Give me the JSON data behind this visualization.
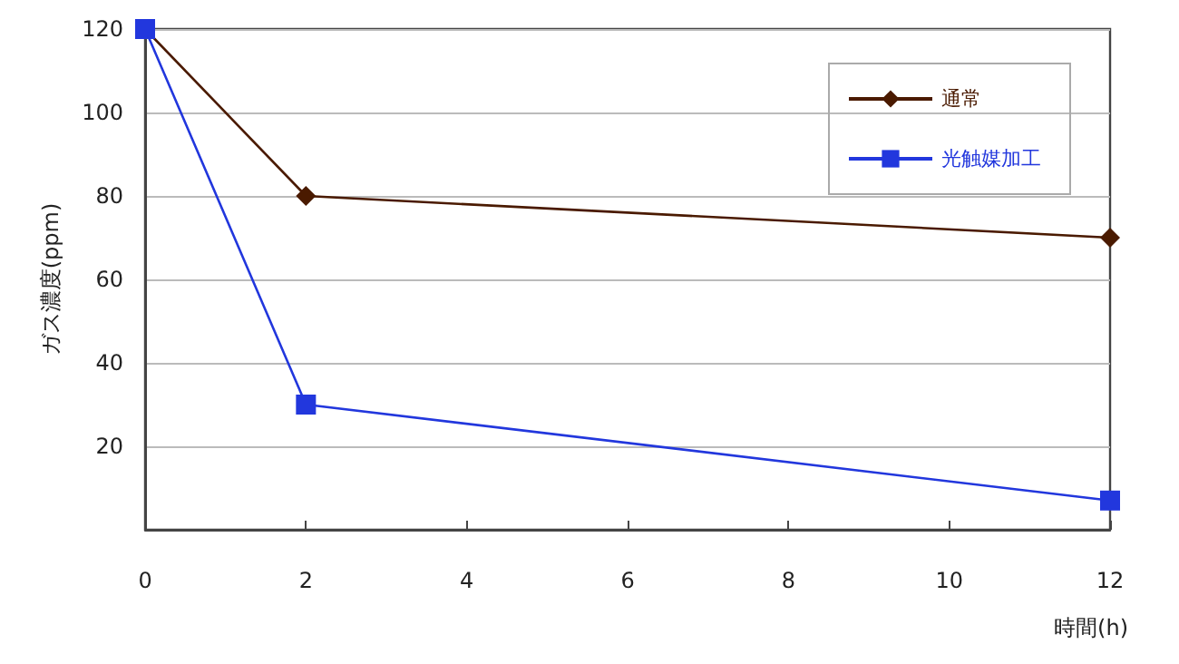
{
  "chart_data": {
    "type": "line",
    "xlabel": "時間(h)",
    "ylabel": "ガス濃度(ppm)",
    "x": [
      0,
      2,
      12
    ],
    "series": [
      {
        "name": "通常",
        "color": "#4a1a00",
        "marker": "diamond",
        "values": [
          120,
          80,
          70
        ]
      },
      {
        "name": "光触媒加工",
        "color": "#2237dd",
        "marker": "square",
        "values": [
          120,
          30,
          7
        ]
      }
    ],
    "xlim": [
      0,
      12
    ],
    "xticks": [
      0,
      2,
      4,
      6,
      8,
      10,
      12
    ],
    "ylim": [
      0,
      120
    ],
    "yticks": [
      20,
      40,
      60,
      80,
      100,
      120
    ],
    "grid": "y",
    "legend": "top right",
    "line_style": "solid"
  }
}
